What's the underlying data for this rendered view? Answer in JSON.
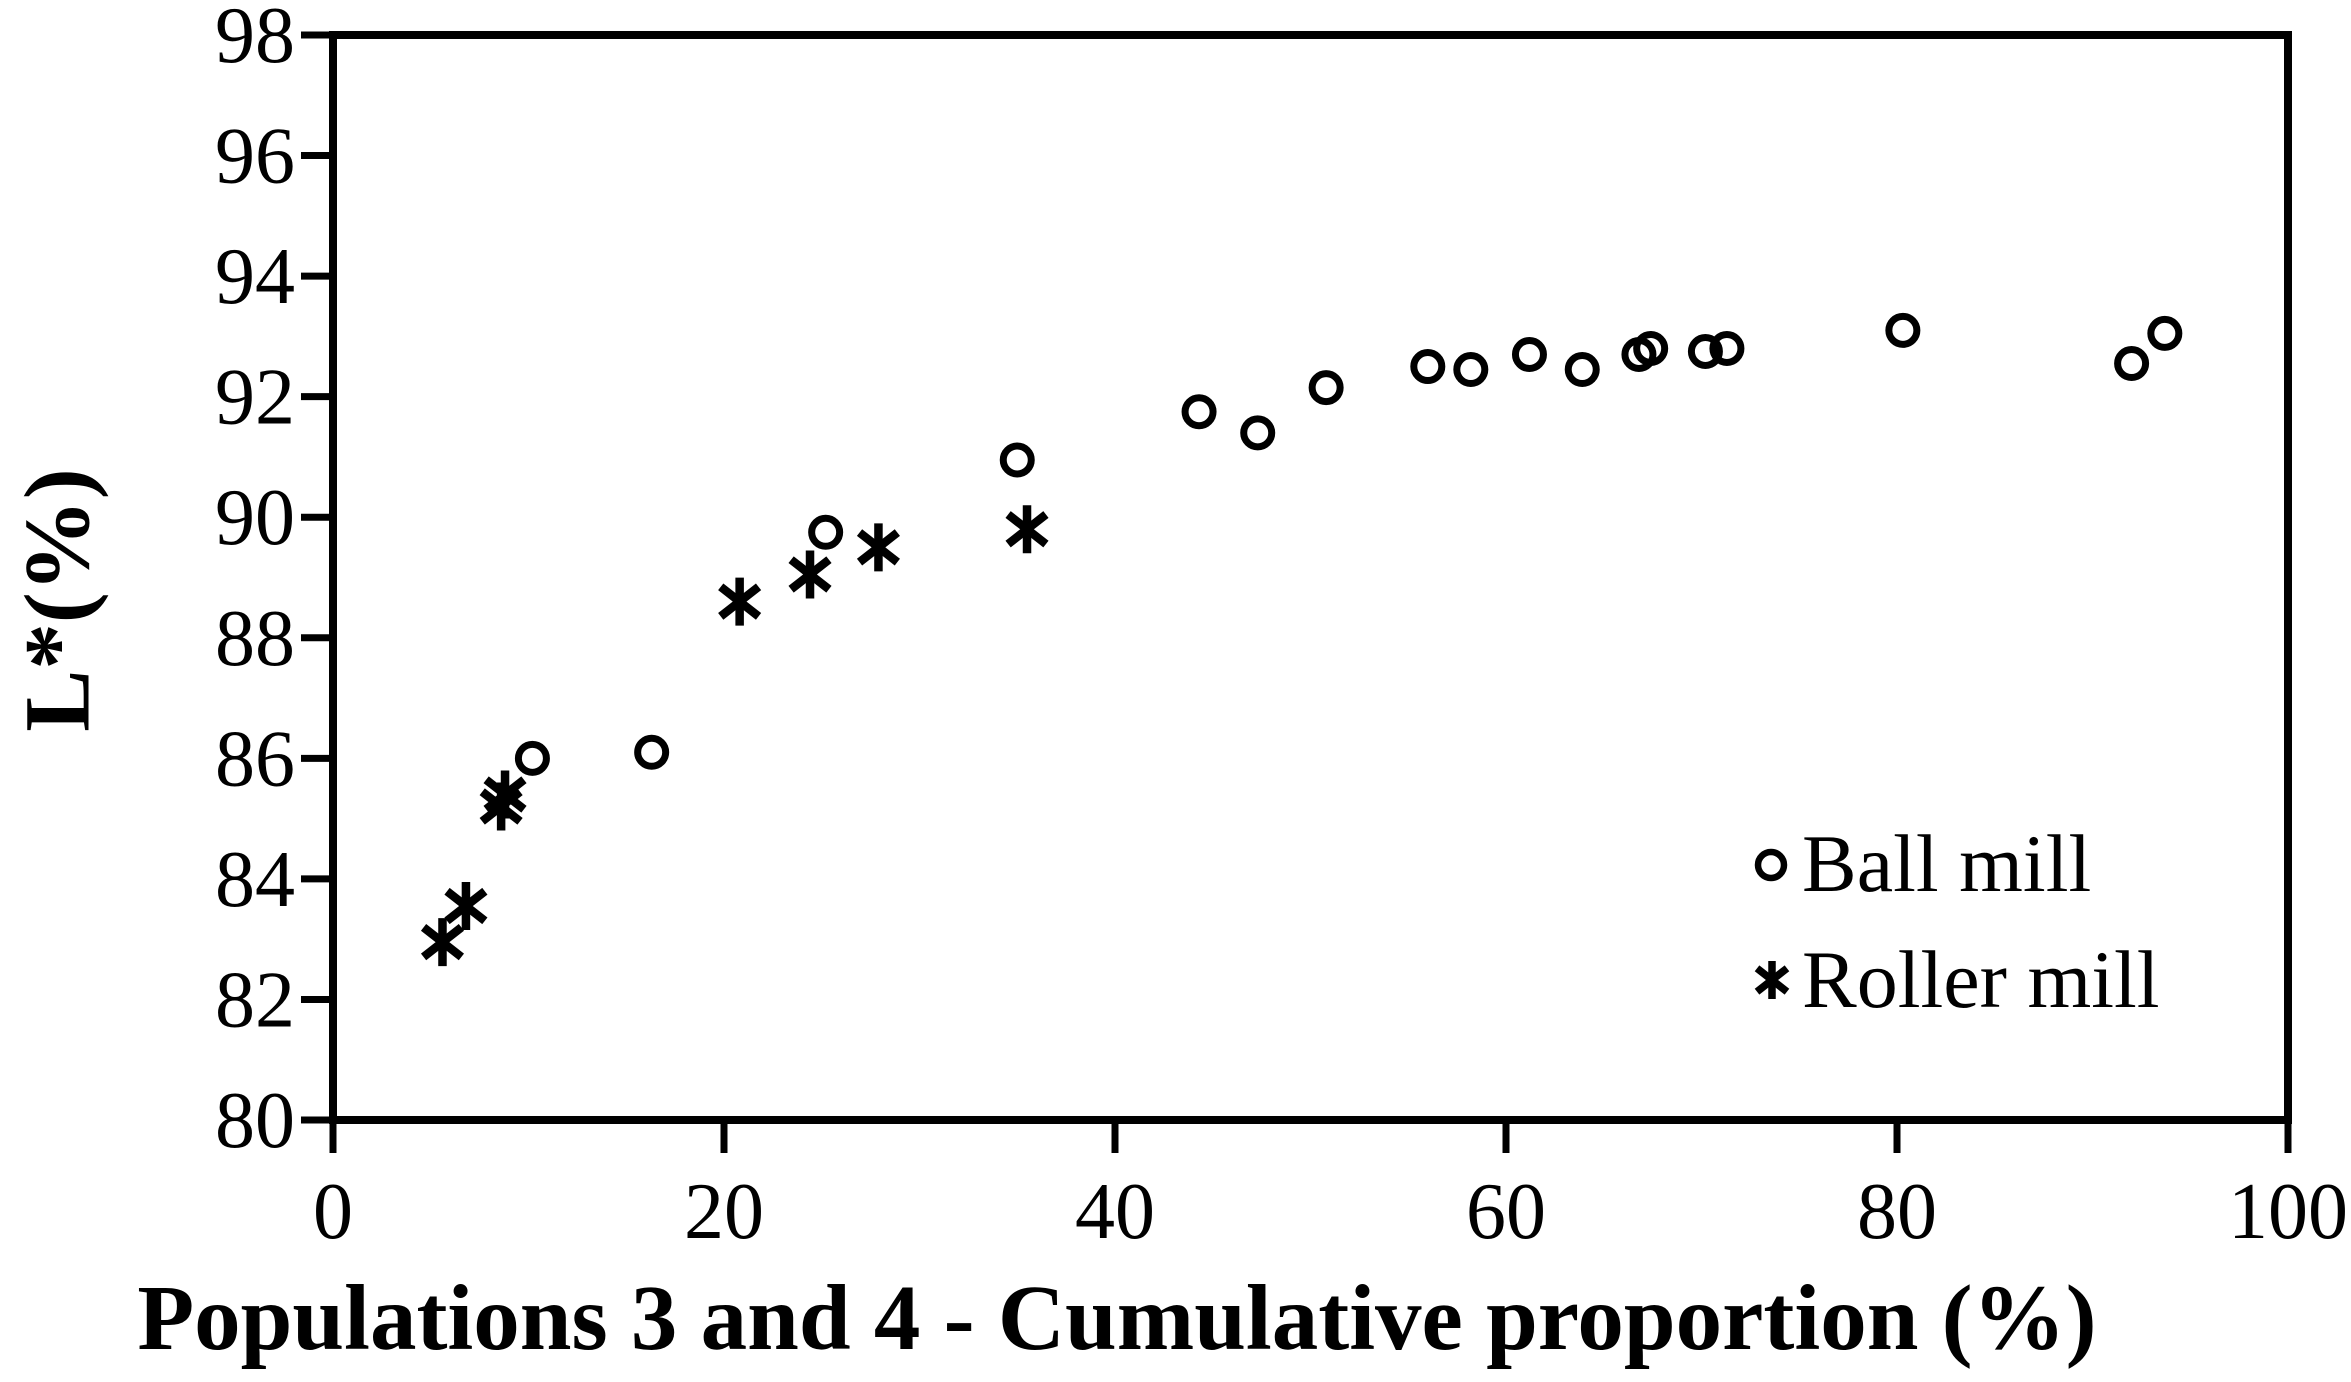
{
  "chart_data": {
    "type": "scatter",
    "title": "",
    "xlabel": "Populations 3 and 4 - Cumulative proportion (%)",
    "ylabel": "L*(%)",
    "xlim": [
      0,
      100
    ],
    "ylim": [
      80,
      98
    ],
    "x_ticks": [
      0,
      20,
      40,
      60,
      80,
      100
    ],
    "y_ticks": [
      80,
      82,
      84,
      86,
      88,
      90,
      92,
      94,
      96,
      98
    ],
    "grid": false,
    "legend_position": "inside-right",
    "series": [
      {
        "name": "Ball mill",
        "marker": "circle",
        "points": [
          [
            10.2,
            86.0
          ],
          [
            16.3,
            86.1
          ],
          [
            25.2,
            89.75
          ],
          [
            35.0,
            90.95
          ],
          [
            44.3,
            91.75
          ],
          [
            47.3,
            91.4
          ],
          [
            50.8,
            92.15
          ],
          [
            56.0,
            92.5
          ],
          [
            58.2,
            92.45
          ],
          [
            61.2,
            92.7
          ],
          [
            63.9,
            92.45
          ],
          [
            66.8,
            92.7
          ],
          [
            67.4,
            92.8
          ],
          [
            70.2,
            92.75
          ],
          [
            71.3,
            92.8
          ],
          [
            80.3,
            93.1
          ],
          [
            92.0,
            92.55
          ],
          [
            93.7,
            93.05
          ]
        ]
      },
      {
        "name": "Roller mill",
        "marker": "asterisk",
        "points": [
          [
            5.6,
            82.95
          ],
          [
            6.8,
            83.55
          ],
          [
            8.6,
            85.2
          ],
          [
            8.8,
            85.4
          ],
          [
            20.8,
            88.6
          ],
          [
            24.4,
            89.05
          ],
          [
            27.9,
            89.5
          ],
          [
            35.5,
            89.8
          ]
        ]
      }
    ],
    "colors": {
      "foreground": "#000000",
      "background": "#ffffff"
    }
  }
}
